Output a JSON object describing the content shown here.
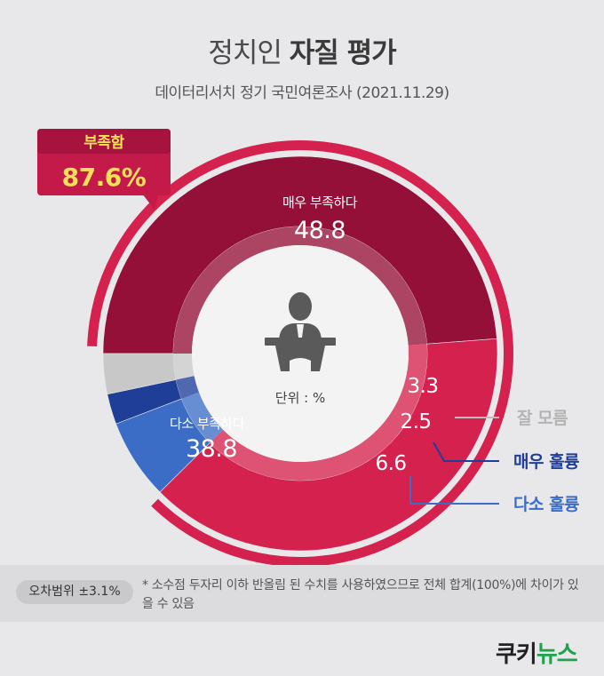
{
  "header": {
    "title_light": "정치인",
    "title_bold": "자질 평가",
    "subtitle": "데이터리서치 정기 국민여론조사 (2021.11.29)"
  },
  "callout": {
    "label": "부족함",
    "value": "87.6%"
  },
  "center": {
    "unit_label": "단위 : %",
    "icon": "speaker-at-podium-icon"
  },
  "footer": {
    "margin_of_error": "오차범위 ±3.1%",
    "note": "* 소수점 두자리 이하 반올림 된 수치를 사용하였으므로 전체 합계(100%)에 차이가 있을 수 있음"
  },
  "logo": {
    "part1": "쿠키",
    "part2": "뉴스"
  },
  "colors": {
    "very_insufficient": "#941038",
    "somewhat_insufficient": "#d5214d",
    "dont_know": "#c8c8c8",
    "very_good": "#1f3e98",
    "somewhat_good": "#3c6dc6",
    "callout_bg": "#c31a4a",
    "callout_value": "#f6e05a",
    "background": "#e8e8ea"
  },
  "chart_data": {
    "type": "pie",
    "variant": "donut",
    "unit": "%",
    "slices": [
      {
        "label": "매우 부족하다",
        "value": 48.8,
        "color": "#941038"
      },
      {
        "label": "다소 부족하다",
        "value": 38.8,
        "color": "#d5214d"
      },
      {
        "label": "다소 훌륭",
        "value": 6.6,
        "color": "#3c6dc6"
      },
      {
        "label": "매우 훌륭",
        "value": 2.5,
        "color": "#1f3e98"
      },
      {
        "label": "잘 모름",
        "value": 3.3,
        "color": "#c8c8c8"
      }
    ],
    "group_total": {
      "label": "부족함",
      "value": 87.6
    }
  }
}
